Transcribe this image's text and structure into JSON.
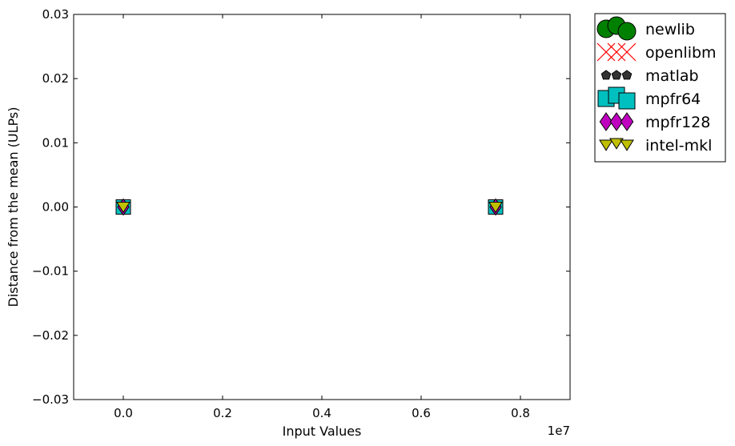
{
  "chart_data": {
    "type": "scatter",
    "title": "",
    "xlabel": "Input Values",
    "ylabel": "Distance from the mean (ULPs)",
    "x_offset_label": "1e7",
    "xlim": [
      -1000000,
      9000000
    ],
    "ylim": [
      -0.03,
      0.03
    ],
    "xticks": [
      0,
      2000000,
      4000000,
      6000000,
      8000000
    ],
    "xtick_labels": [
      "0.0",
      "0.2",
      "0.4",
      "0.6",
      "0.8"
    ],
    "yticks": [
      0.03,
      0.02,
      0.01,
      0.0,
      -0.01,
      -0.02,
      -0.03
    ],
    "ytick_labels": [
      "0.03",
      "0.02",
      "0.01",
      "0.00",
      "−0.01",
      "−0.02",
      "−0.03"
    ],
    "grid": false,
    "legend_position": "outside-right-top",
    "series": [
      {
        "name": "newlib",
        "marker": "circle",
        "color": "#008000",
        "x": [
          0,
          7500000
        ],
        "y": [
          0.0,
          0.0
        ]
      },
      {
        "name": "openlibm",
        "marker": "x",
        "color": "#ff0000",
        "x": [
          0,
          7500000
        ],
        "y": [
          0.0,
          0.0
        ]
      },
      {
        "name": "matlab",
        "marker": "pentagon",
        "color": "#333333",
        "x": [
          0,
          7500000
        ],
        "y": [
          0.0,
          0.0
        ]
      },
      {
        "name": "mpfr64",
        "marker": "square",
        "color": "#00bfbf",
        "x": [
          0,
          7500000
        ],
        "y": [
          0.0,
          0.0
        ]
      },
      {
        "name": "mpfr128",
        "marker": "diamond",
        "color": "#bf00bf",
        "x": [
          0,
          7500000
        ],
        "y": [
          0.0,
          0.0
        ]
      },
      {
        "name": "intel-mkl",
        "marker": "triangle-down",
        "color": "#bfbf00",
        "x": [
          0,
          7500000
        ],
        "y": [
          0.0,
          0.0
        ]
      }
    ]
  }
}
